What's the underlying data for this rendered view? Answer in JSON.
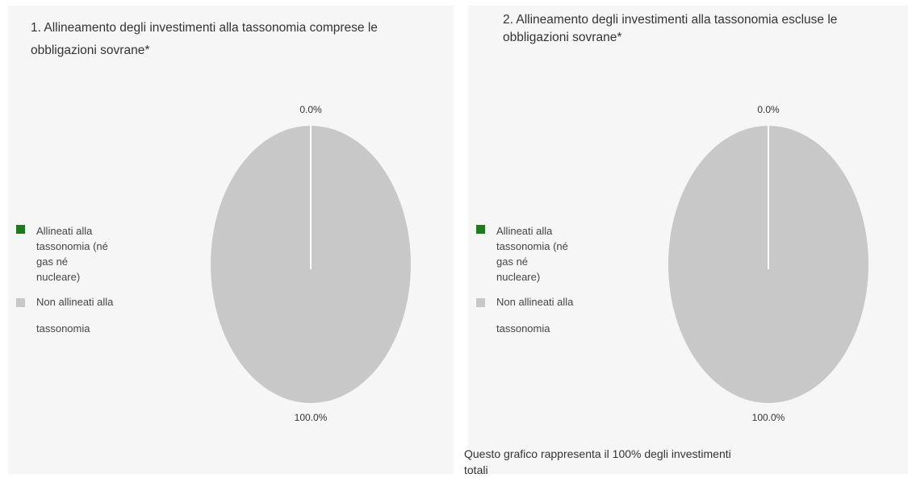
{
  "colors": {
    "aligned": "#1f7a1f",
    "non_aligned": "#c8c8c8",
    "panel_bg": "#f6f6f6"
  },
  "chart_data": [
    {
      "type": "pie",
      "title": "1. Allineamento degli investimenti alla tassonomia comprese le obbligazioni sovrane*",
      "categories": [
        "Allineati alla tassonomia (né gas né nucleare)",
        "Non allineati alla tassonomia"
      ],
      "values": [
        0.0,
        100.0
      ],
      "labels": [
        "0.0%",
        "100.0%"
      ],
      "colors": [
        "#1f7a1f",
        "#c8c8c8"
      ],
      "legend_position": "left"
    },
    {
      "type": "pie",
      "title": "2. Allineamento degli investimenti alla tassonomia escluse le obbligazioni sovrane*",
      "categories": [
        "Allineati alla tassonomia (né gas né nucleare)",
        "Non allineati alla tassonomia"
      ],
      "values": [
        0.0,
        100.0
      ],
      "labels": [
        "0.0%",
        "100.0%"
      ],
      "colors": [
        "#1f7a1f",
        "#c8c8c8"
      ],
      "legend_position": "left"
    }
  ],
  "footnote": "Questo grafico rappresenta il 100% degli investimenti totali"
}
